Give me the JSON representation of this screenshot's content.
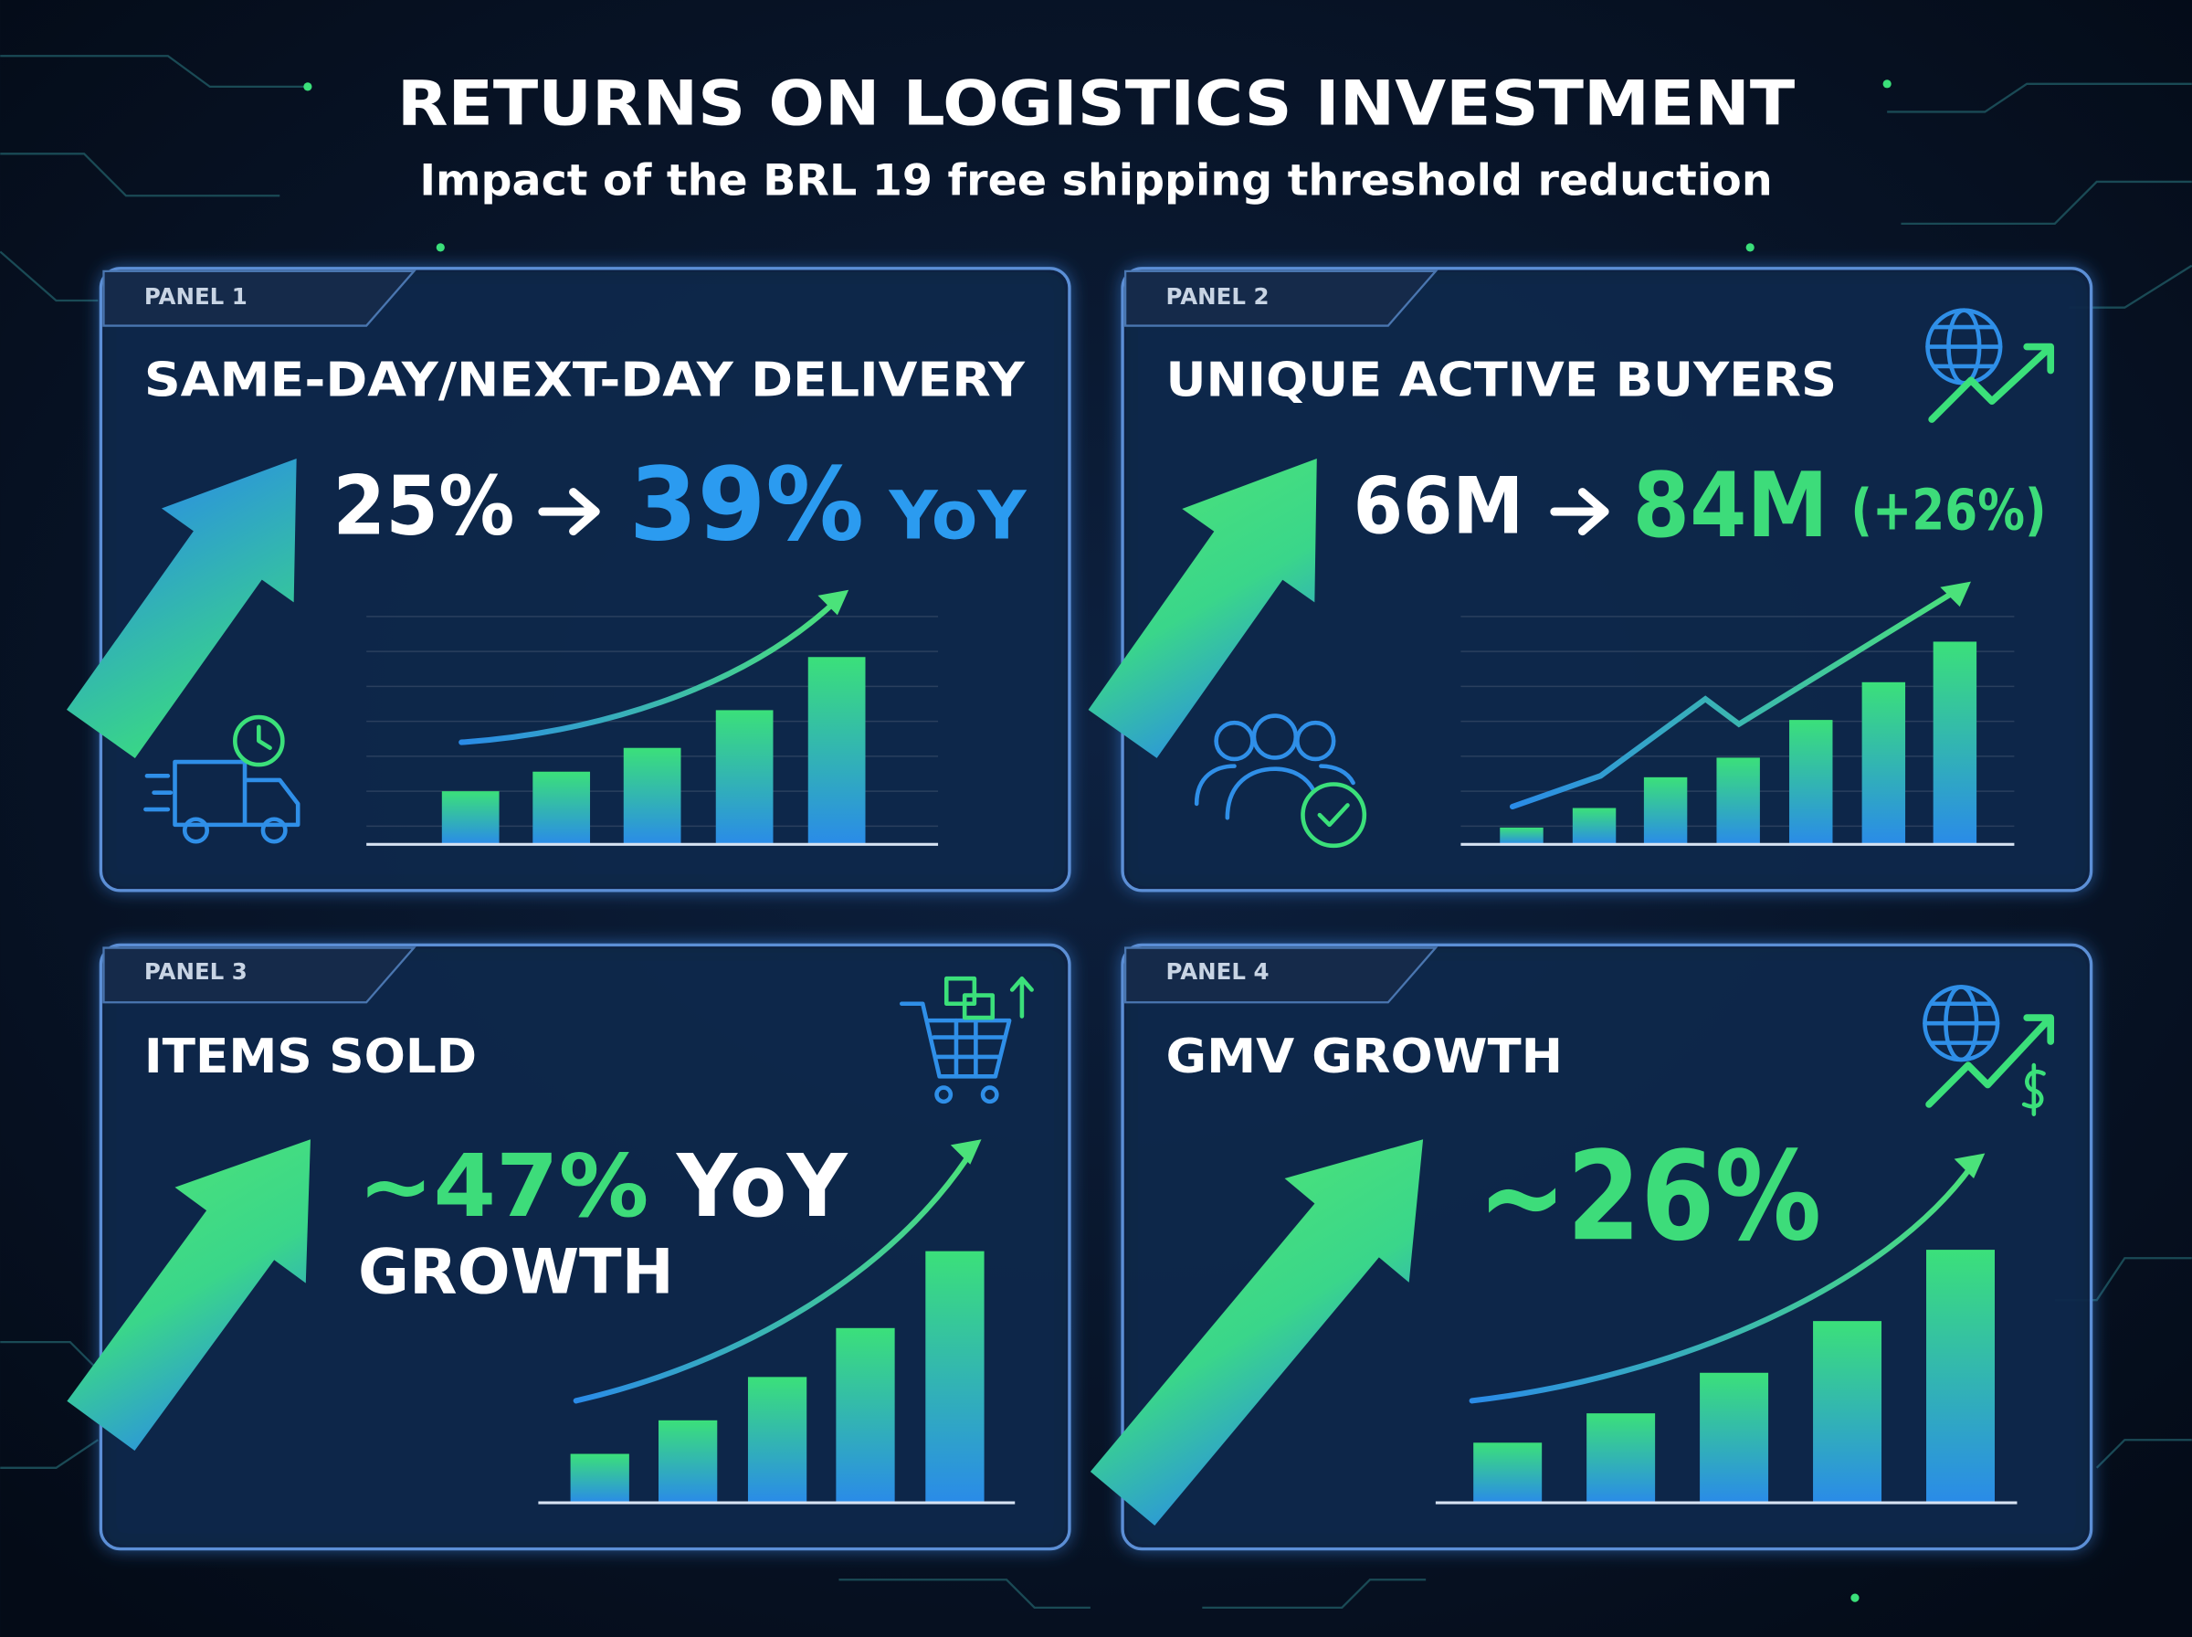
{
  "header": {
    "title": "RETURNS ON LOGISTICS INVESTMENT",
    "subtitle": "Impact of the BRL 19 free shipping threshold reduction"
  },
  "panels": [
    {
      "label": "PANEL 1",
      "title": "SAME-DAY/NEXT-DAY DELIVERY",
      "from": "25%",
      "to": "39%",
      "note": "YoY"
    },
    {
      "label": "PANEL 2",
      "title": "UNIQUE ACTIVE BUYERS",
      "from": "66M",
      "to": "84M",
      "note": "(+26%)"
    },
    {
      "label": "PANEL 3",
      "title": "ITEMS SOLD",
      "value": "~47%",
      "note": "YoY",
      "caption": "GROWTH"
    },
    {
      "label": "PANEL 4",
      "title": "GMV GROWTH",
      "value": "~26%"
    }
  ]
}
